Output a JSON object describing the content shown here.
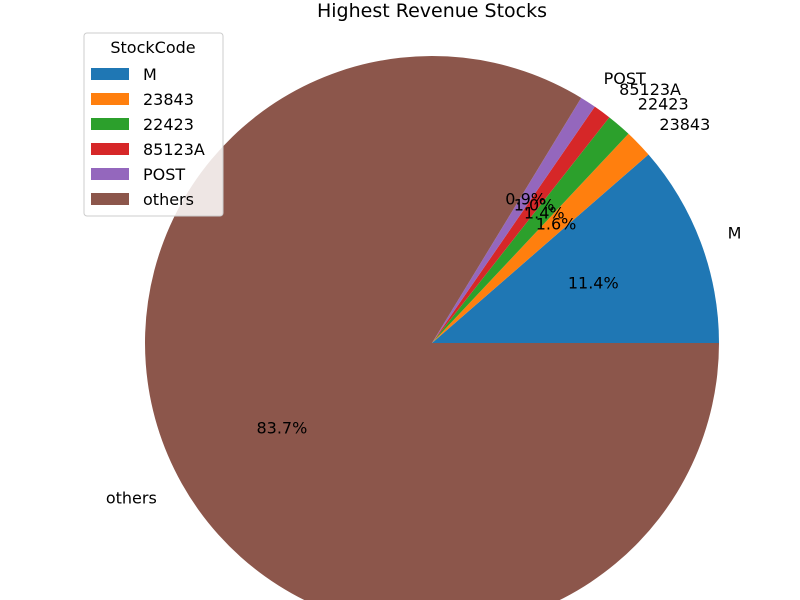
{
  "chart_data": {
    "type": "pie",
    "title": "Highest Revenue Stocks",
    "legend_title": "StockCode",
    "legend_position": "top-left",
    "start_angle_deg": 0,
    "direction": "counterclockwise",
    "slices": [
      {
        "label": "M",
        "value": 11.4,
        "pct_label": "11.4%",
        "color": "#1f77b4"
      },
      {
        "label": "23843",
        "value": 1.6,
        "pct_label": "1.6%",
        "color": "#ff7f0e"
      },
      {
        "label": "22423",
        "value": 1.4,
        "pct_label": "1.4%",
        "color": "#2ca02c"
      },
      {
        "label": "85123A",
        "value": 1.0,
        "pct_label": "1.0%",
        "color": "#d62728"
      },
      {
        "label": "POST",
        "value": 0.9,
        "pct_label": "0.9%",
        "color": "#9467bd"
      },
      {
        "label": "others",
        "value": 83.7,
        "pct_label": "83.7%",
        "color": "#8c564b"
      }
    ]
  }
}
